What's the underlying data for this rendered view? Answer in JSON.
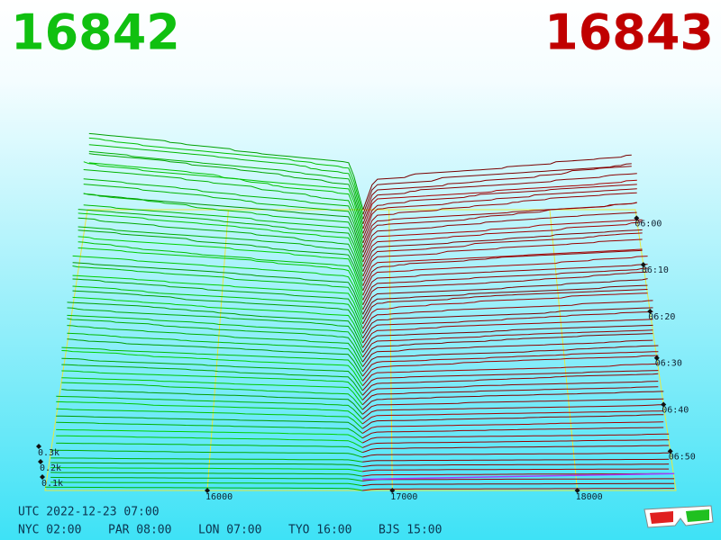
{
  "header": {
    "bid": "16842",
    "ask": "16843"
  },
  "axes": {
    "xlim": [
      15123,
      18533
    ],
    "price_ticks": [
      16000,
      17000,
      18000
    ],
    "depth_ticks": [
      "0.3k",
      "0.2k",
      "0.1k"
    ],
    "time_ticks": [
      "06:00",
      "06:10",
      "06:20",
      "06:30",
      "06:40",
      "06:50"
    ]
  },
  "footer": {
    "utc": "UTC 2022-12-23 07:00",
    "clocks": [
      "NYC 02:00",
      "PAR 08:00",
      "LON 07:00",
      "TYO 16:00",
      "BJS 15:00"
    ]
  }
}
